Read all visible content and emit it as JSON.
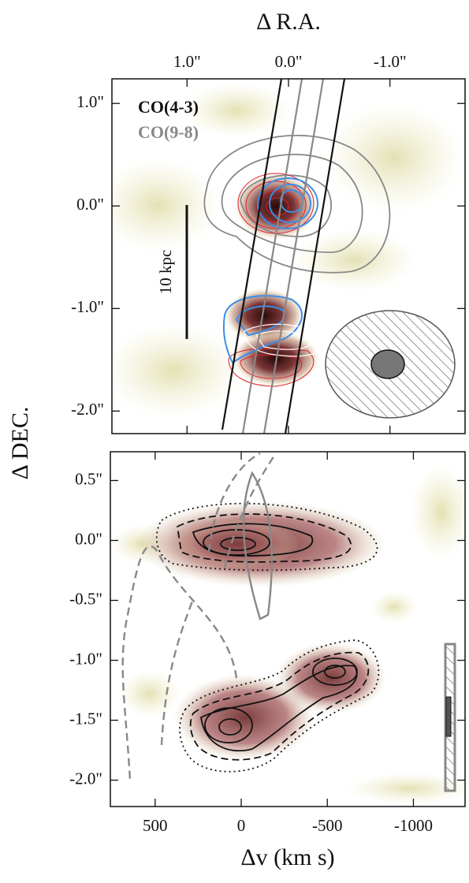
{
  "chart_data": [
    {
      "type": "map",
      "xlabel": "Δ R.A.",
      "ylabel": "Δ DEC.",
      "xlim": [
        1.74,
        -1.74
      ],
      "ylim": [
        -2.22,
        1.24
      ],
      "xticks": [
        {
          "value": 1,
          "label": "1.0\""
        },
        {
          "value": 0,
          "label": "0.0\""
        },
        {
          "value": -1,
          "label": "-1.0\""
        }
      ],
      "yticks": [
        {
          "value": 1,
          "label": "1.0\""
        },
        {
          "value": 0,
          "label": "0.0\""
        },
        {
          "value": -1,
          "label": "-1.0\""
        },
        {
          "value": -2,
          "label": "-2.0\""
        }
      ],
      "series": [
        {
          "name": "CO(4-3)",
          "color": "#111111"
        },
        {
          "name": "CO(9-8)",
          "color": "#888888"
        }
      ],
      "annotation": "10 kpc"
    },
    {
      "type": "pv",
      "xlabel": "Δv<sub>QSO</sub> (km s<sup>−1</sup>)",
      "xlim": [
        760,
        -1300
      ],
      "ylim": [
        -2.22,
        0.74
      ],
      "xticks": [
        500,
        0,
        -500,
        -1000
      ],
      "yticks": [
        {
          "value": 0.5,
          "label": "0.5\""
        },
        {
          "value": 0,
          "label": "0.0\""
        },
        {
          "value": -0.5,
          "label": "-0.5\""
        },
        {
          "value": -1,
          "label": "-1.0\""
        },
        {
          "value": -1.5,
          "label": "-1.5\""
        },
        {
          "value": -2,
          "label": "-2.0\""
        }
      ]
    }
  ]
}
